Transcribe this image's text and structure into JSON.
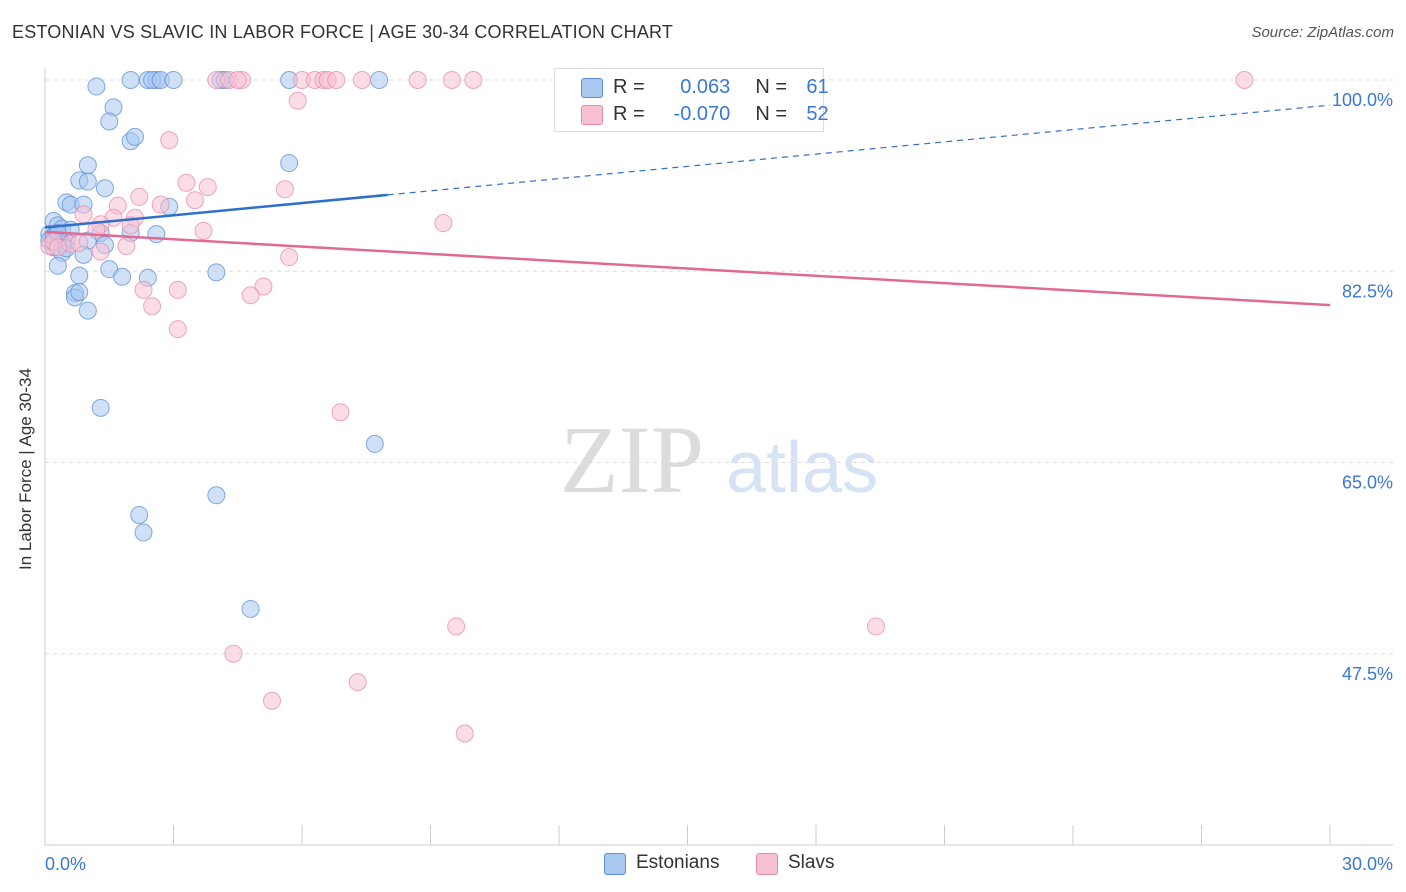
{
  "title": "ESTONIAN VS SLAVIC IN LABOR FORCE | AGE 30-34 CORRELATION CHART",
  "source": "Source: ZipAtlas.com",
  "watermark": {
    "zip": "ZIP",
    "atlas": "atlas"
  },
  "legend": {
    "rows": [
      {
        "r_label": "R =",
        "r_value": "0.063",
        "n_label": "N =",
        "n_value": "61"
      },
      {
        "r_label": "R =",
        "r_value": "-0.070",
        "n_label": "N =",
        "n_value": "52"
      }
    ]
  },
  "colors": {
    "estonians_fill": "#a9c8f0",
    "estonians_stroke": "#5b8fd6",
    "estonians_line": "#2f6fcc",
    "slavs_fill": "#f7c1d3",
    "slavs_stroke": "#e98aab",
    "slavs_line": "#e06a94",
    "tick_label": "#3a78d4",
    "grid": "#dddddd"
  },
  "chart_data": {
    "type": "scatter",
    "title": "ESTONIAN VS SLAVIC IN LABOR FORCE | AGE 30-34 CORRELATION CHART",
    "xlabel": "",
    "ylabel": "In Labor Force | Age 30-34",
    "xlim": [
      0,
      30
    ],
    "ylim": [
      30,
      100
    ],
    "x_tick_labels": [
      "0.0%",
      "30.0%"
    ],
    "y_ticks": [
      47.5,
      65.0,
      82.5,
      100.0
    ],
    "y_tick_labels": [
      "47.5%",
      "65.0%",
      "82.5%",
      "100.0%"
    ],
    "grid": true,
    "series": [
      {
        "name": "Estonians",
        "R": 0.063,
        "N": 61,
        "trend": {
          "x_start": 0,
          "x_solid_end": 8.0,
          "x_end": 30,
          "y_start": 86.5,
          "y_end": 97.7
        },
        "points": [
          [
            1.2,
            99.4
          ],
          [
            2.0,
            100
          ],
          [
            2.4,
            100
          ],
          [
            2.6,
            100
          ],
          [
            2.5,
            100
          ],
          [
            2.7,
            100
          ],
          [
            3.0,
            100
          ],
          [
            4.1,
            100
          ],
          [
            4.2,
            100
          ],
          [
            5.7,
            100
          ],
          [
            7.8,
            100
          ],
          [
            1.6,
            97.5
          ],
          [
            1.5,
            96.2
          ],
          [
            2.0,
            94.4
          ],
          [
            2.1,
            94.8
          ],
          [
            1.0,
            92.2
          ],
          [
            5.7,
            92.4
          ],
          [
            0.8,
            90.8
          ],
          [
            1.0,
            90.7
          ],
          [
            1.4,
            90.1
          ],
          [
            0.5,
            88.8
          ],
          [
            0.6,
            88.6
          ],
          [
            0.9,
            88.6
          ],
          [
            2.9,
            88.4
          ],
          [
            0.2,
            87.1
          ],
          [
            0.3,
            86.7
          ],
          [
            0.4,
            86.4
          ],
          [
            0.6,
            86.3
          ],
          [
            1.3,
            86.0
          ],
          [
            2.0,
            86.0
          ],
          [
            2.6,
            85.9
          ],
          [
            0.1,
            85.9
          ],
          [
            0.2,
            85.5
          ],
          [
            0.3,
            85.2
          ],
          [
            0.4,
            85.0
          ],
          [
            0.5,
            85.2
          ],
          [
            1.0,
            85.3
          ],
          [
            1.4,
            84.9
          ],
          [
            0.1,
            85.3
          ],
          [
            0.2,
            84.7
          ],
          [
            0.4,
            84.2
          ],
          [
            0.9,
            84.0
          ],
          [
            0.3,
            83.0
          ],
          [
            1.5,
            82.7
          ],
          [
            4.0,
            82.4
          ],
          [
            0.8,
            82.1
          ],
          [
            1.8,
            82.0
          ],
          [
            2.4,
            81.9
          ],
          [
            0.7,
            80.5
          ],
          [
            0.7,
            80.1
          ],
          [
            0.8,
            80.6
          ],
          [
            1.0,
            78.9
          ],
          [
            1.3,
            70.0
          ],
          [
            7.7,
            66.7
          ],
          [
            4.0,
            62.0
          ],
          [
            2.2,
            60.2
          ],
          [
            2.3,
            58.6
          ],
          [
            4.8,
            51.6
          ],
          [
            0.2,
            85.7
          ],
          [
            0.5,
            84.6
          ],
          [
            0.3,
            86.0
          ]
        ]
      },
      {
        "name": "Slavs",
        "R": -0.07,
        "N": 52,
        "trend": {
          "x_start": 0,
          "x_end": 30,
          "y_start": 86.1,
          "y_end": 79.4
        },
        "points": [
          [
            4.0,
            100
          ],
          [
            4.3,
            100
          ],
          [
            4.6,
            100
          ],
          [
            4.5,
            100
          ],
          [
            6.0,
            100
          ],
          [
            6.3,
            100
          ],
          [
            6.5,
            100
          ],
          [
            6.6,
            100
          ],
          [
            6.8,
            100
          ],
          [
            7.4,
            100
          ],
          [
            8.7,
            100
          ],
          [
            9.5,
            100
          ],
          [
            10.0,
            100
          ],
          [
            28.0,
            100
          ],
          [
            5.9,
            98.1
          ],
          [
            2.9,
            94.5
          ],
          [
            3.3,
            90.6
          ],
          [
            3.8,
            90.2
          ],
          [
            5.6,
            90.0
          ],
          [
            2.2,
            89.3
          ],
          [
            1.7,
            88.5
          ],
          [
            3.5,
            89.0
          ],
          [
            2.7,
            88.6
          ],
          [
            0.9,
            87.7
          ],
          [
            1.6,
            87.4
          ],
          [
            2.1,
            87.4
          ],
          [
            1.3,
            86.8
          ],
          [
            2.0,
            86.7
          ],
          [
            9.3,
            86.9
          ],
          [
            3.7,
            86.2
          ],
          [
            1.2,
            86.3
          ],
          [
            0.6,
            85.0
          ],
          [
            0.1,
            84.8
          ],
          [
            0.2,
            85.2
          ],
          [
            0.3,
            84.7
          ],
          [
            0.8,
            85.1
          ],
          [
            1.9,
            84.8
          ],
          [
            1.3,
            84.3
          ],
          [
            5.7,
            83.8
          ],
          [
            5.1,
            81.1
          ],
          [
            3.1,
            80.8
          ],
          [
            2.3,
            80.8
          ],
          [
            4.8,
            80.3
          ],
          [
            2.5,
            79.3
          ],
          [
            3.1,
            77.2
          ],
          [
            6.9,
            69.6
          ],
          [
            9.6,
            50.0
          ],
          [
            19.4,
            50.0
          ],
          [
            4.4,
            47.5
          ],
          [
            7.3,
            44.9
          ],
          [
            5.3,
            43.2
          ],
          [
            9.8,
            40.2
          ]
        ]
      }
    ]
  },
  "bottom_legend": [
    {
      "label": "Estonians"
    },
    {
      "label": "Slavs"
    }
  ]
}
